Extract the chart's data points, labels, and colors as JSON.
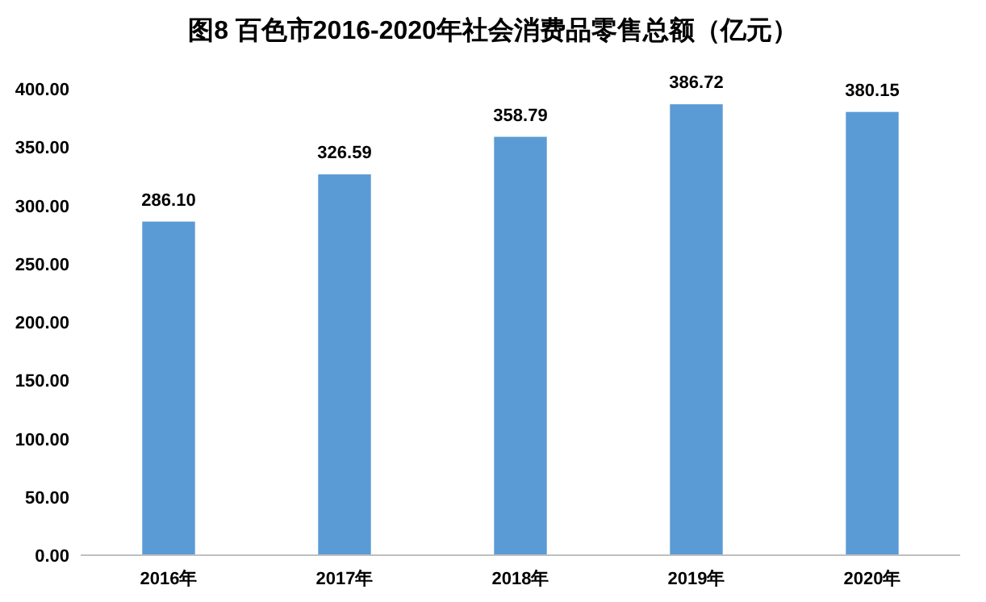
{
  "chart_data": {
    "type": "bar",
    "title": "图8  百色市2016-2020年社会消费品零售总额（亿元）",
    "categories": [
      "2016年",
      "2017年",
      "2018年",
      "2019年",
      "2020年"
    ],
    "values": [
      286.1,
      326.59,
      358.79,
      386.72,
      380.15
    ],
    "value_labels": [
      "286.10",
      "326.59",
      "358.79",
      "386.72",
      "380.15"
    ],
    "color": "#5b9bd5",
    "ylim": [
      0,
      400
    ],
    "yticks": [
      {
        "value": 0,
        "label": "0.00"
      },
      {
        "value": 50,
        "label": "50.00"
      },
      {
        "value": 100,
        "label": "100.00"
      },
      {
        "value": 150,
        "label": "150.00"
      },
      {
        "value": 200,
        "label": "200.00"
      },
      {
        "value": 250,
        "label": "250.00"
      },
      {
        "value": 300,
        "label": "300.00"
      },
      {
        "value": 350,
        "label": "350.00"
      },
      {
        "value": 400,
        "label": "400.00"
      }
    ],
    "grid": false
  }
}
